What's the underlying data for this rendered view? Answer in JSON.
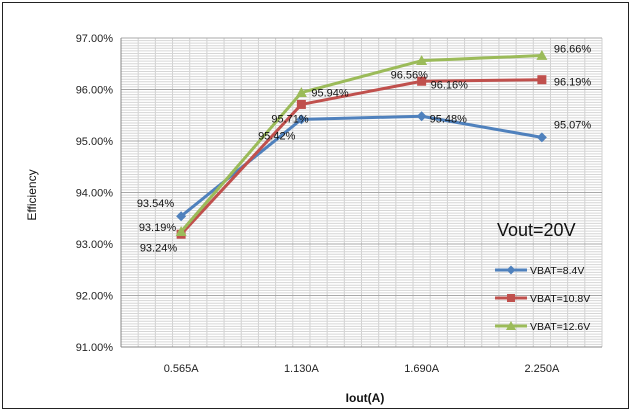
{
  "chart_data": {
    "type": "line",
    "title": "",
    "xlabel": "Iout(A)",
    "ylabel": "Efficiency",
    "categories": [
      "0.565A",
      "1.130A",
      "1.690A",
      "2.250A"
    ],
    "y_ticks": [
      "91.00%",
      "92.00%",
      "93.00%",
      "94.00%",
      "95.00%",
      "96.00%",
      "97.00%"
    ],
    "ylim": [
      91.0,
      97.0
    ],
    "grid": true,
    "annotation": "Vout=20V",
    "legend_position": "right",
    "series": [
      {
        "name": "VBAT=8.4V",
        "color": "#4f81bd",
        "marker": "diamond",
        "values": [
          93.54,
          95.42,
          95.48,
          95.07
        ],
        "labels": [
          "93.54%",
          "95.42%",
          "95.48%",
          "95.07%"
        ]
      },
      {
        "name": "VBAT=10.8V",
        "color": "#c0504d",
        "marker": "square",
        "values": [
          93.19,
          95.71,
          96.16,
          96.19
        ],
        "labels": [
          "93.19%",
          "95.71%",
          "96.16%",
          "96.19%"
        ]
      },
      {
        "name": "VBAT=12.6V",
        "color": "#9bbb59",
        "marker": "triangle",
        "values": [
          93.24,
          95.94,
          96.56,
          96.66
        ],
        "labels": [
          "93.24%",
          "95.94%",
          "96.56%",
          "96.66%"
        ]
      }
    ]
  }
}
